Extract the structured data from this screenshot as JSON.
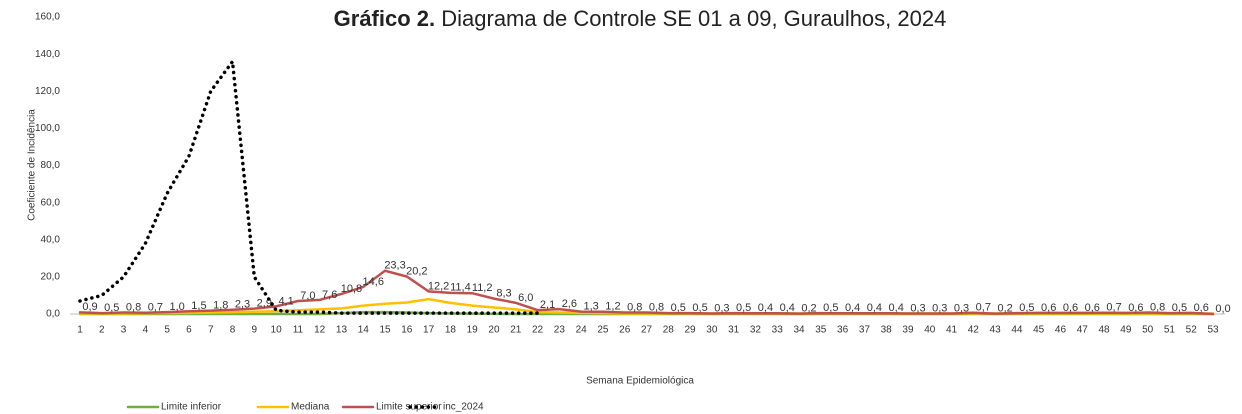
{
  "chart_data": {
    "type": "line",
    "title": "Gráfico 2.",
    "subtitle": "Diagrama de Controle SE 01 a 09, Guraulhos, 2024",
    "y_label": "Coeficiente de Incidência",
    "x_label": "Semana Epidemiológica",
    "categories": [
      1,
      2,
      3,
      4,
      5,
      6,
      7,
      8,
      9,
      10,
      11,
      12,
      13,
      14,
      15,
      16,
      17,
      18,
      19,
      20,
      21,
      22,
      23,
      24,
      25,
      26,
      27,
      28,
      29,
      30,
      31,
      32,
      33,
      34,
      35,
      36,
      37,
      38,
      39,
      40,
      41,
      42,
      43,
      44,
      45,
      46,
      47,
      48,
      49,
      50,
      51,
      52,
      53
    ],
    "ylim": [
      0,
      160
    ],
    "yticks": [
      {
        "value": 0,
        "label": "0,0"
      },
      {
        "value": 20,
        "label": "20,0"
      },
      {
        "value": 40,
        "label": "40,0"
      },
      {
        "value": 60,
        "label": "60,0"
      },
      {
        "value": 80,
        "label": "80,0"
      },
      {
        "value": 100,
        "label": "100,0"
      },
      {
        "value": 120,
        "label": "120,0"
      },
      {
        "value": 140,
        "label": "140,0"
      },
      {
        "value": 160,
        "label": "160,0"
      }
    ],
    "series": [
      {
        "name": "Limite inferior",
        "color": "#70ad47",
        "dash": false,
        "values": [
          0,
          0,
          0,
          0,
          0,
          0,
          0,
          0,
          0,
          0,
          0,
          0,
          0.5,
          1,
          1,
          0.8,
          0.5,
          0.3,
          0.2,
          0.1,
          0,
          0,
          0,
          0,
          0,
          0,
          0,
          0,
          0,
          0,
          0,
          0,
          0,
          0,
          0,
          0,
          0,
          0,
          0,
          0,
          0,
          0,
          0,
          0,
          0,
          0,
          0,
          0,
          0,
          0,
          0,
          0,
          0
        ]
      },
      {
        "name": "Mediana",
        "color": "#ffc000",
        "dash": false,
        "values": [
          0.3,
          0.3,
          0.3,
          0.4,
          0.5,
          0.6,
          0.8,
          1,
          1.2,
          1.5,
          2,
          2.5,
          3,
          4.5,
          5.5,
          6.2,
          8,
          6,
          4.5,
          3.5,
          2.5,
          1,
          0.8,
          0.6,
          0.5,
          0.3,
          0.3,
          0.3,
          0.3,
          0.3,
          0.3,
          0.3,
          0.3,
          0.3,
          0.3,
          0.3,
          0.3,
          0.3,
          0.3,
          0.3,
          0.3,
          0.3,
          0.3,
          0.3,
          0.3,
          0.3,
          0.3,
          0.3,
          0.3,
          0.3,
          0.3,
          0.3,
          0.3
        ]
      },
      {
        "name": "Limite superior",
        "color": "#c0504d",
        "dash": false,
        "values": [
          0.9,
          0.5,
          0.8,
          0.7,
          1.0,
          1.5,
          1.8,
          2.3,
          2.9,
          4.1,
          7.0,
          7.6,
          10.8,
          14.6,
          23.3,
          20.2,
          12.2,
          11.4,
          11.2,
          8.3,
          6.0,
          2.1,
          2.6,
          1.3,
          1.2,
          0.8,
          0.8,
          0.5,
          0.5,
          0.3,
          0.5,
          0.4,
          0.4,
          0.2,
          0.5,
          0.4,
          0.4,
          0.4,
          0.3,
          0.3,
          0.3,
          0.7,
          0.2,
          0.5,
          0.6,
          0.6,
          0.6,
          0.7,
          0.6,
          0.8,
          0.5,
          0.6,
          0.0
        ],
        "value_labels": [
          "0,9",
          "0,5",
          "0,8",
          "0,7",
          "1,0",
          "1,5",
          "1,8",
          "2,3",
          "2,9",
          "4,1",
          "7,0",
          "7,6",
          "10,8",
          "14,6",
          "23,3",
          "20,2",
          "12,2",
          "11,4",
          "11,2",
          "8,3",
          "6,0",
          "2,1",
          "2,6",
          "1,3",
          "1,2",
          "0,8",
          "0,8",
          "0,5",
          "0,5",
          "0,3",
          "0,5",
          "0,4",
          "0,4",
          "0,2",
          "0,5",
          "0,4",
          "0,4",
          "0,4",
          "0,3",
          "0,3",
          "0,3",
          "0,7",
          "0,2",
          "0,5",
          "0,6",
          "0,6",
          "0,6",
          "0,7",
          "0,6",
          "0,8",
          "0,5",
          "0,6",
          "0,0"
        ]
      },
      {
        "name": "inc_2024",
        "color": "#000000",
        "dash": true,
        "values": [
          7,
          10,
          20,
          38,
          65,
          85,
          120,
          136,
          20,
          2,
          1,
          1,
          0.5,
          0.5,
          0.5,
          0.5,
          0.5,
          0.5,
          0.5,
          0.5,
          0.5,
          0.5,
          null,
          null,
          null,
          null,
          null,
          null,
          null,
          null,
          null,
          null,
          null,
          null,
          null,
          null,
          null,
          null,
          null,
          null,
          null,
          null,
          null,
          null,
          null,
          null,
          null,
          null,
          null,
          null,
          null,
          null,
          null
        ]
      }
    ]
  }
}
